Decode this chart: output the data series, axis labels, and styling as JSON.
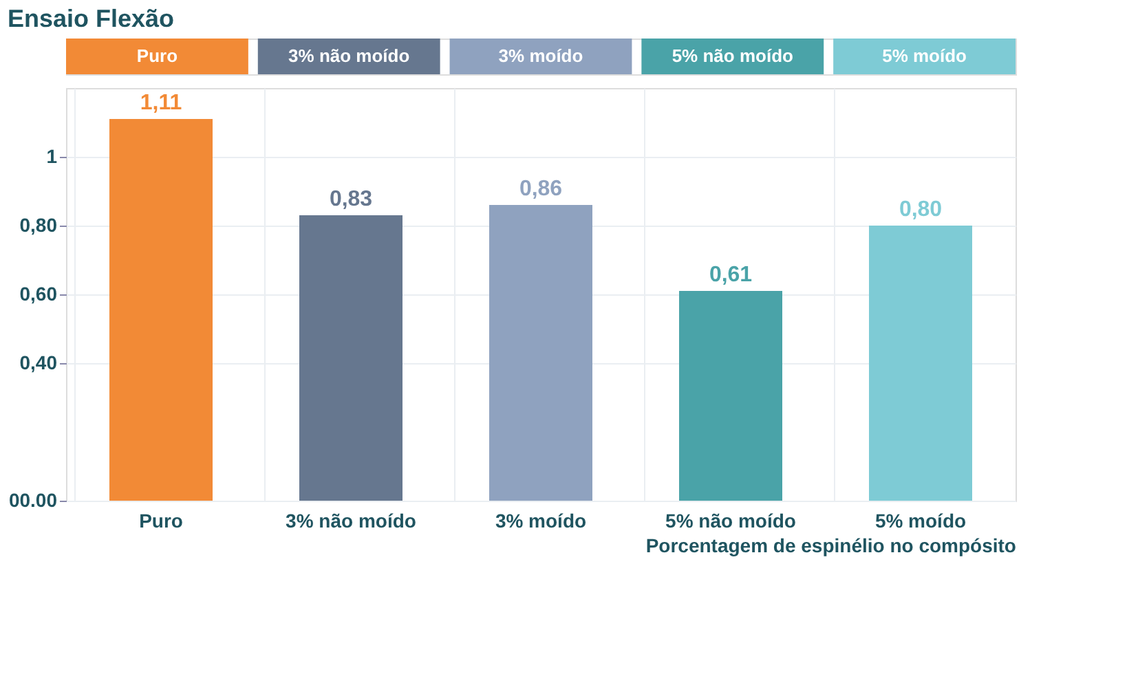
{
  "chart_data": {
    "type": "bar",
    "title": "Ensaio Flexão",
    "xlabel": "Porcentagem de espinélio no compósito",
    "categories": [
      "Puro",
      "3% não moído",
      "3% moído",
      "5% não moído",
      "5% moído"
    ],
    "values": [
      1.11,
      0.83,
      0.86,
      0.61,
      0.8
    ],
    "colors": [
      "#f28a36",
      "#66778f",
      "#8fa2bf",
      "#4aa3a8",
      "#7ecbd5"
    ],
    "data_labels": true,
    "value_labels": [
      "1,11",
      "0,83",
      "0,86",
      "0,61",
      "0,80"
    ],
    "ylim": [
      0,
      1.2
    ],
    "yticks": [
      {
        "value": 0,
        "label": "00.00"
      },
      {
        "value": 0.4,
        "label": "0,40"
      },
      {
        "value": 0.6,
        "label": "0,60"
      },
      {
        "value": 0.8,
        "label": "0,80"
      },
      1
    ],
    "grid": true
  }
}
